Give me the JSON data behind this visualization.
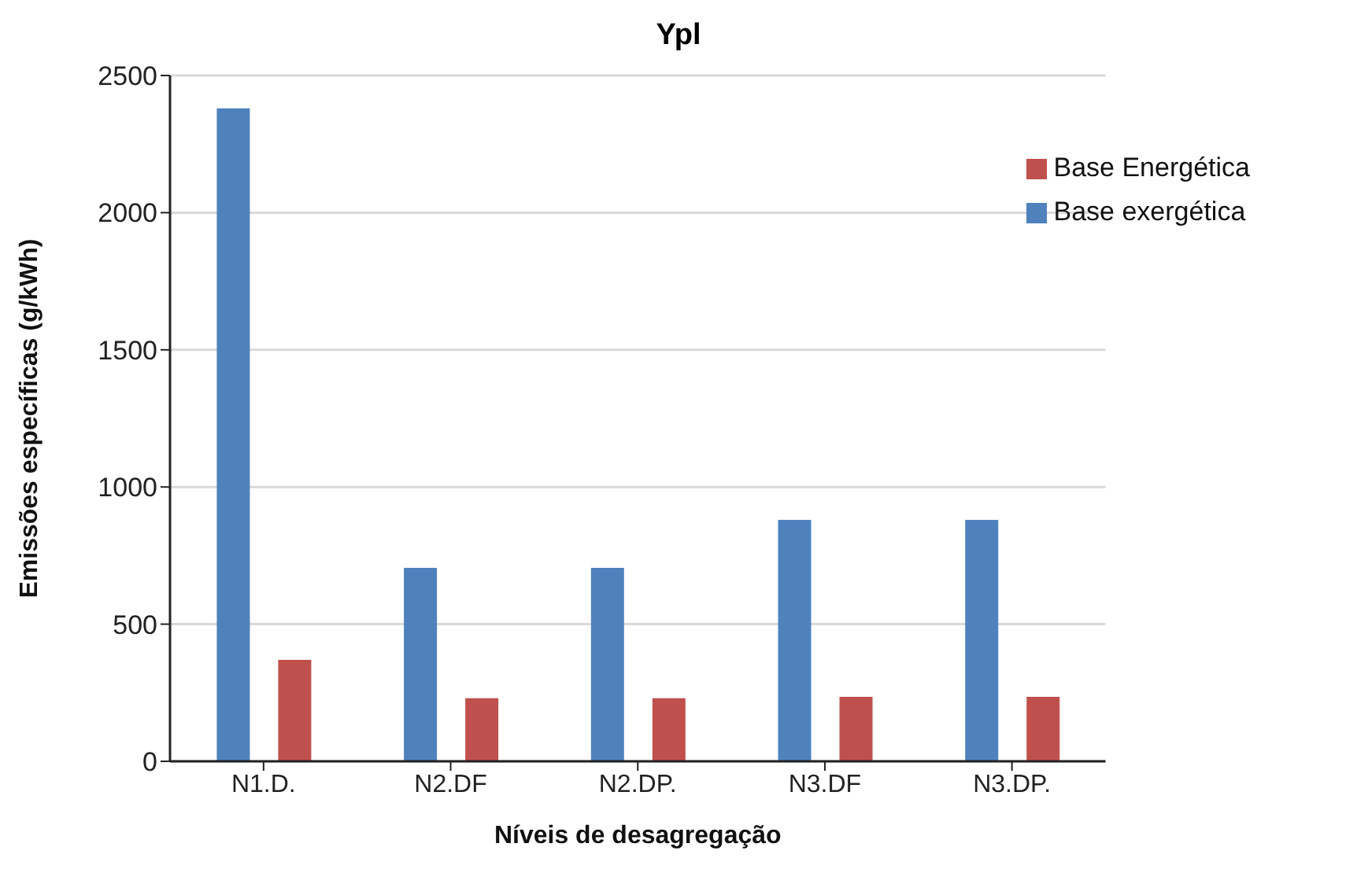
{
  "chart_data": {
    "type": "bar",
    "title": "Ypl",
    "xlabel": "Níveis de desagregação",
    "ylabel": "Emissões específicas (g/kWh)",
    "categories": [
      "N1.D.",
      "N2.DF",
      "N2.DP.",
      "N3.DF",
      "N3.DP."
    ],
    "series": [
      {
        "name": "Base exergética",
        "color": "#4f81bd",
        "values": [
          2380,
          705,
          705,
          880,
          880
        ]
      },
      {
        "name": "Base Energética",
        "color": "#c0504d",
        "values": [
          370,
          230,
          230,
          235,
          235
        ]
      }
    ],
    "ylim": [
      0,
      2500
    ],
    "yticks": [
      0,
      500,
      1000,
      1500,
      2000,
      2500
    ],
    "grid": "y",
    "legend": "top right"
  }
}
